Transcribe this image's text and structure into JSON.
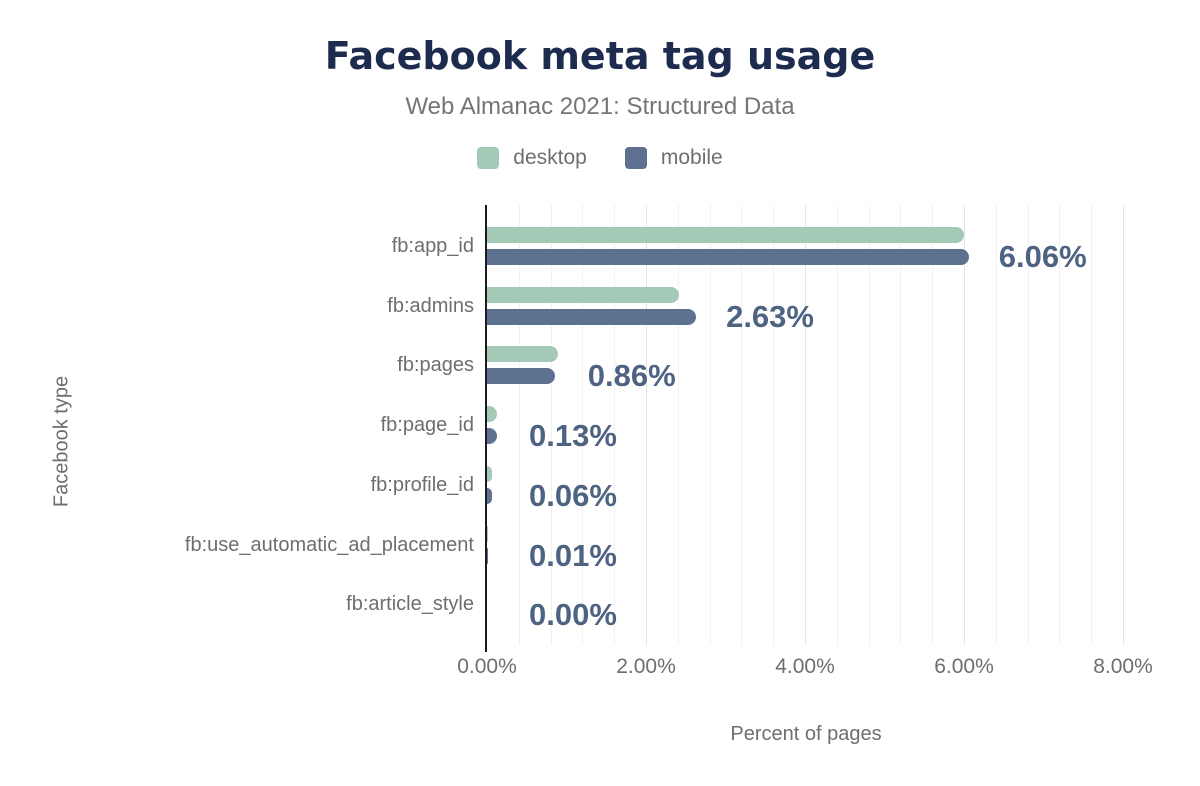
{
  "title": "Facebook meta tag usage",
  "subtitle": "Web Almanac 2021: Structured Data",
  "legend": [
    {
      "label": "desktop",
      "color": "#a5c9b7"
    },
    {
      "label": "mobile",
      "color": "#5d7190"
    }
  ],
  "colors": {
    "title": "#1d2b4e",
    "subtitle_gray": "#757575",
    "axis_text_gray": "#6e6e6e",
    "value_label": "#4d6381",
    "desktop_bar": "#a5c9b7",
    "mobile_bar": "#5d7190",
    "axis_line": "#1c1c1c",
    "gridline_minor": "#f1f1f1",
    "gridline_major": "#e6e6e6"
  },
  "chart_data": {
    "type": "bar",
    "orientation": "horizontal",
    "title": "Facebook meta tag usage",
    "subtitle": "Web Almanac 2021: Structured Data",
    "xlabel": "Percent of pages",
    "ylabel": "Facebook type",
    "xlim": [
      0,
      8
    ],
    "x_ticks": [
      "0.00%",
      "2.00%",
      "4.00%",
      "6.00%",
      "8.00%"
    ],
    "x_tick_values": [
      0,
      2,
      4,
      6,
      8
    ],
    "grid": "vertical, minor every 0.4%, major every 2.0%",
    "legend_position": "top-center",
    "categories": [
      "fb:app_id",
      "fb:admins",
      "fb:pages",
      "fb:page_id",
      "fb:profile_id",
      "fb:use_automatic_ad_placement",
      "fb:article_style"
    ],
    "series": [
      {
        "name": "desktop",
        "color": "#a5c9b7",
        "values": [
          6.0,
          2.41,
          0.89,
          0.13,
          0.06,
          0.01,
          0.0
        ]
      },
      {
        "name": "mobile",
        "color": "#5d7190",
        "values": [
          6.06,
          2.63,
          0.86,
          0.13,
          0.06,
          0.01,
          0.0
        ]
      }
    ],
    "value_labels": [
      "6.06%",
      "2.63%",
      "0.86%",
      "0.13%",
      "0.06%",
      "0.01%",
      "0.00%"
    ],
    "value_labels_source": "mobile"
  }
}
